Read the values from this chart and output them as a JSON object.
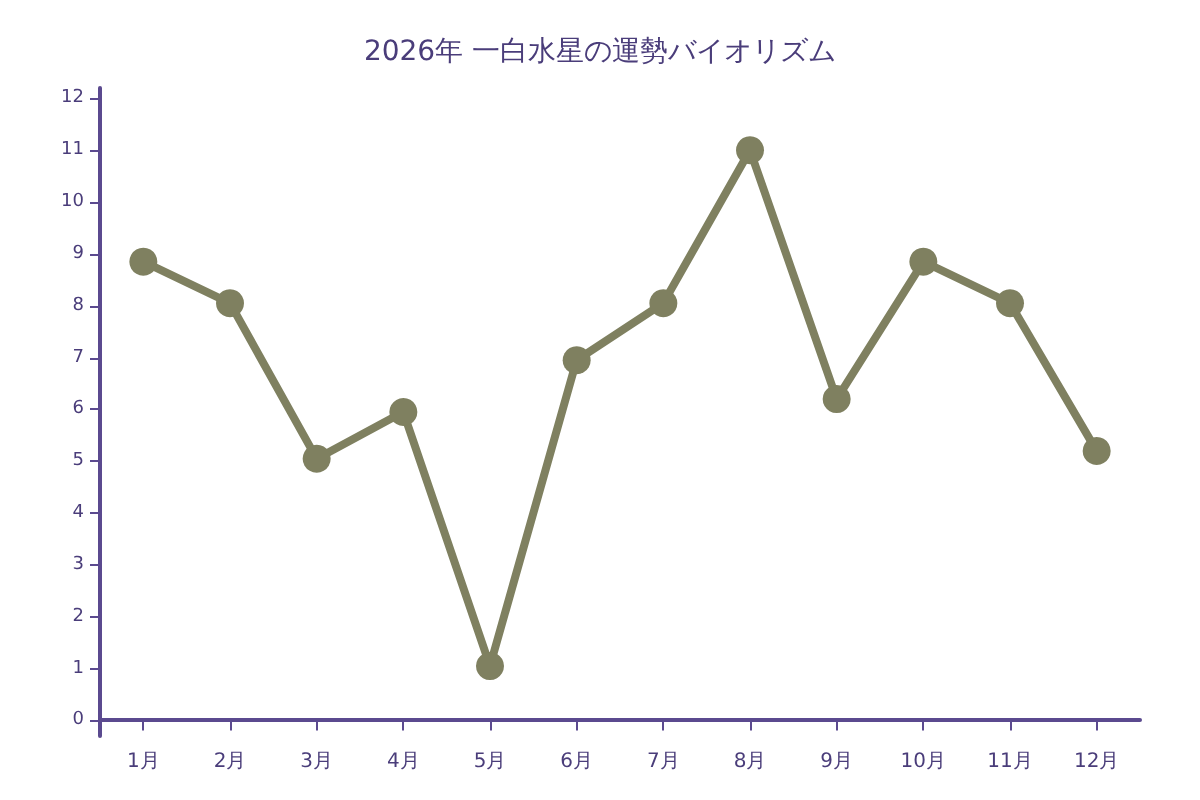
{
  "chart_data": {
    "type": "line",
    "title": "2026年 一白水星の運勢バイオリズム",
    "categories": [
      "1月",
      "2月",
      "3月",
      "4月",
      "5月",
      "6月",
      "7月",
      "8月",
      "9月",
      "10月",
      "11月",
      "12月"
    ],
    "series": [
      {
        "color": "#7f8060",
        "values": [
          8.85,
          8.05,
          5.05,
          5.95,
          1.05,
          6.95,
          8.05,
          11,
          6.2,
          8.85,
          8.05,
          5.2
        ]
      }
    ],
    "ylim": [
      -0.3,
      12.2
    ],
    "yticks": [
      0,
      1,
      2,
      3,
      4,
      5,
      6,
      7,
      8,
      9,
      10,
      11,
      12
    ],
    "grid": false,
    "marker": "circle",
    "line_style": "solid"
  }
}
